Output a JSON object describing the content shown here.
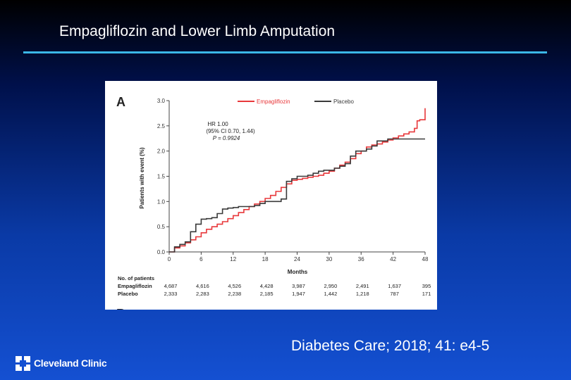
{
  "slide": {
    "title": "Empagliflozin and Lower Limb Amputation",
    "citation": "Diabetes Care; 2018; 41: e4-5",
    "logo_text": "Cleveland Clinic",
    "logo_icon": "cleveland-clinic-cross-icon"
  },
  "colors": {
    "empagliflozin": "#e8383b",
    "placebo": "#3a3a3a",
    "title_rule": "#3bb6e6"
  },
  "chart_data": {
    "type": "line",
    "panel_label": "A",
    "next_panel_label": "B",
    "xlabel": "Months",
    "ylabel": "Patients with event (%)",
    "xlim": [
      0,
      48
    ],
    "ylim": [
      0,
      3.0
    ],
    "x_ticks": [
      0,
      6,
      12,
      18,
      24,
      30,
      36,
      42,
      48
    ],
    "y_ticks": [
      "0.0",
      "0.5",
      "1.0",
      "1.5",
      "2.0",
      "2.5",
      "3.0"
    ],
    "stats": {
      "hr": "HR 1.00",
      "ci": "(95% CI 0.70, 1.44)",
      "p": "P = 0.9924"
    },
    "series": [
      {
        "name": "Empagliflozin",
        "color": "#e8383b",
        "x": [
          0,
          1,
          2,
          3,
          4,
          5,
          6,
          7,
          8,
          9,
          10,
          11,
          12,
          13,
          14,
          15,
          16,
          17,
          18,
          19,
          20,
          21,
          22,
          23,
          24,
          25,
          26,
          27,
          28,
          29,
          30,
          31,
          32,
          33,
          34,
          35,
          36,
          37,
          38,
          39,
          40,
          41,
          42,
          43,
          44,
          45,
          46,
          46.5,
          47,
          47.5,
          48
        ],
        "y": [
          0.0,
          0.08,
          0.12,
          0.18,
          0.24,
          0.3,
          0.38,
          0.45,
          0.5,
          0.55,
          0.6,
          0.66,
          0.72,
          0.78,
          0.84,
          0.9,
          0.95,
          1.0,
          1.06,
          1.12,
          1.2,
          1.28,
          1.35,
          1.42,
          1.44,
          1.46,
          1.48,
          1.5,
          1.52,
          1.56,
          1.6,
          1.66,
          1.72,
          1.78,
          1.85,
          1.95,
          2.0,
          2.08,
          2.12,
          2.14,
          2.18,
          2.22,
          2.26,
          2.3,
          2.34,
          2.38,
          2.45,
          2.6,
          2.62,
          2.62,
          2.85
        ]
      },
      {
        "name": "Placebo",
        "color": "#3a3a3a",
        "x": [
          0,
          1,
          2,
          3,
          4,
          5,
          6,
          7,
          8,
          9,
          10,
          11,
          12,
          13,
          14,
          15,
          16,
          17,
          18,
          19,
          20,
          21,
          22,
          23,
          24,
          25,
          26,
          27,
          28,
          29,
          30,
          31,
          32,
          33,
          34,
          35,
          36,
          37,
          38,
          39,
          40,
          41,
          42,
          43,
          44,
          45,
          46,
          47,
          48
        ],
        "y": [
          0.0,
          0.1,
          0.15,
          0.2,
          0.4,
          0.55,
          0.65,
          0.66,
          0.68,
          0.76,
          0.85,
          0.87,
          0.88,
          0.9,
          0.9,
          0.9,
          0.92,
          0.96,
          1.0,
          1.0,
          1.0,
          1.05,
          1.4,
          1.45,
          1.5,
          1.5,
          1.52,
          1.56,
          1.6,
          1.62,
          1.62,
          1.66,
          1.7,
          1.75,
          1.9,
          2.0,
          2.0,
          2.04,
          2.1,
          2.2,
          2.2,
          2.24,
          2.24,
          2.24,
          2.24,
          2.24,
          2.24,
          2.24,
          2.24
        ]
      }
    ],
    "at_risk": {
      "title": "No. of patients",
      "rows": [
        {
          "label": "Empagliflozin",
          "values": [
            "4,687",
            "4,616",
            "4,526",
            "4,428",
            "3,987",
            "2,950",
            "2,491",
            "1,637",
            "395"
          ]
        },
        {
          "label": "Placebo",
          "values": [
            "2,333",
            "2,283",
            "2,238",
            "2,185",
            "1,947",
            "1,442",
            "1,218",
            "787",
            "171"
          ]
        }
      ]
    }
  }
}
